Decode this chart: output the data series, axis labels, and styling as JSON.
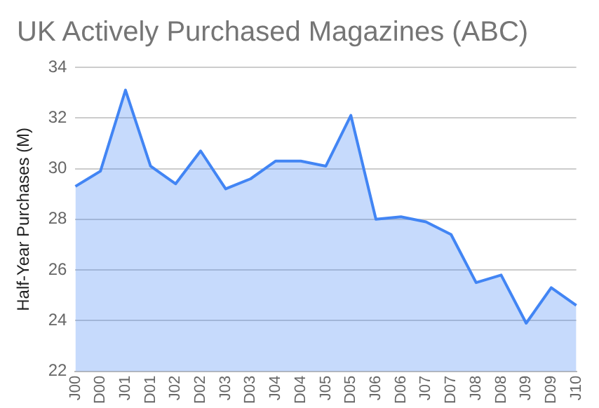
{
  "chart_data": {
    "type": "area",
    "title": "UK Actively Purchased Magazines (ABC)",
    "ylabel": "Half-Year Purchases (M)",
    "categories": [
      "J00",
      "D00",
      "J01",
      "D01",
      "J02",
      "D02",
      "J03",
      "D03",
      "J04",
      "D04",
      "J05",
      "D05",
      "J06",
      "D06",
      "J07",
      "D07",
      "J08",
      "D08",
      "J09",
      "D09",
      "J10"
    ],
    "series": [
      {
        "color": "#4285f4",
        "values": [
          29.3,
          29.9,
          33.1,
          30.1,
          29.4,
          30.7,
          29.2,
          29.6,
          30.3,
          30.3,
          30.1,
          32.1,
          28.0,
          28.1,
          27.9,
          27.4,
          25.5,
          25.8,
          23.9,
          25.3,
          24.6
        ]
      }
    ],
    "ylim": [
      22,
      34
    ],
    "yticks": [
      22,
      24,
      26,
      28,
      30,
      32,
      34
    ],
    "grid": "y",
    "legend": false
  }
}
